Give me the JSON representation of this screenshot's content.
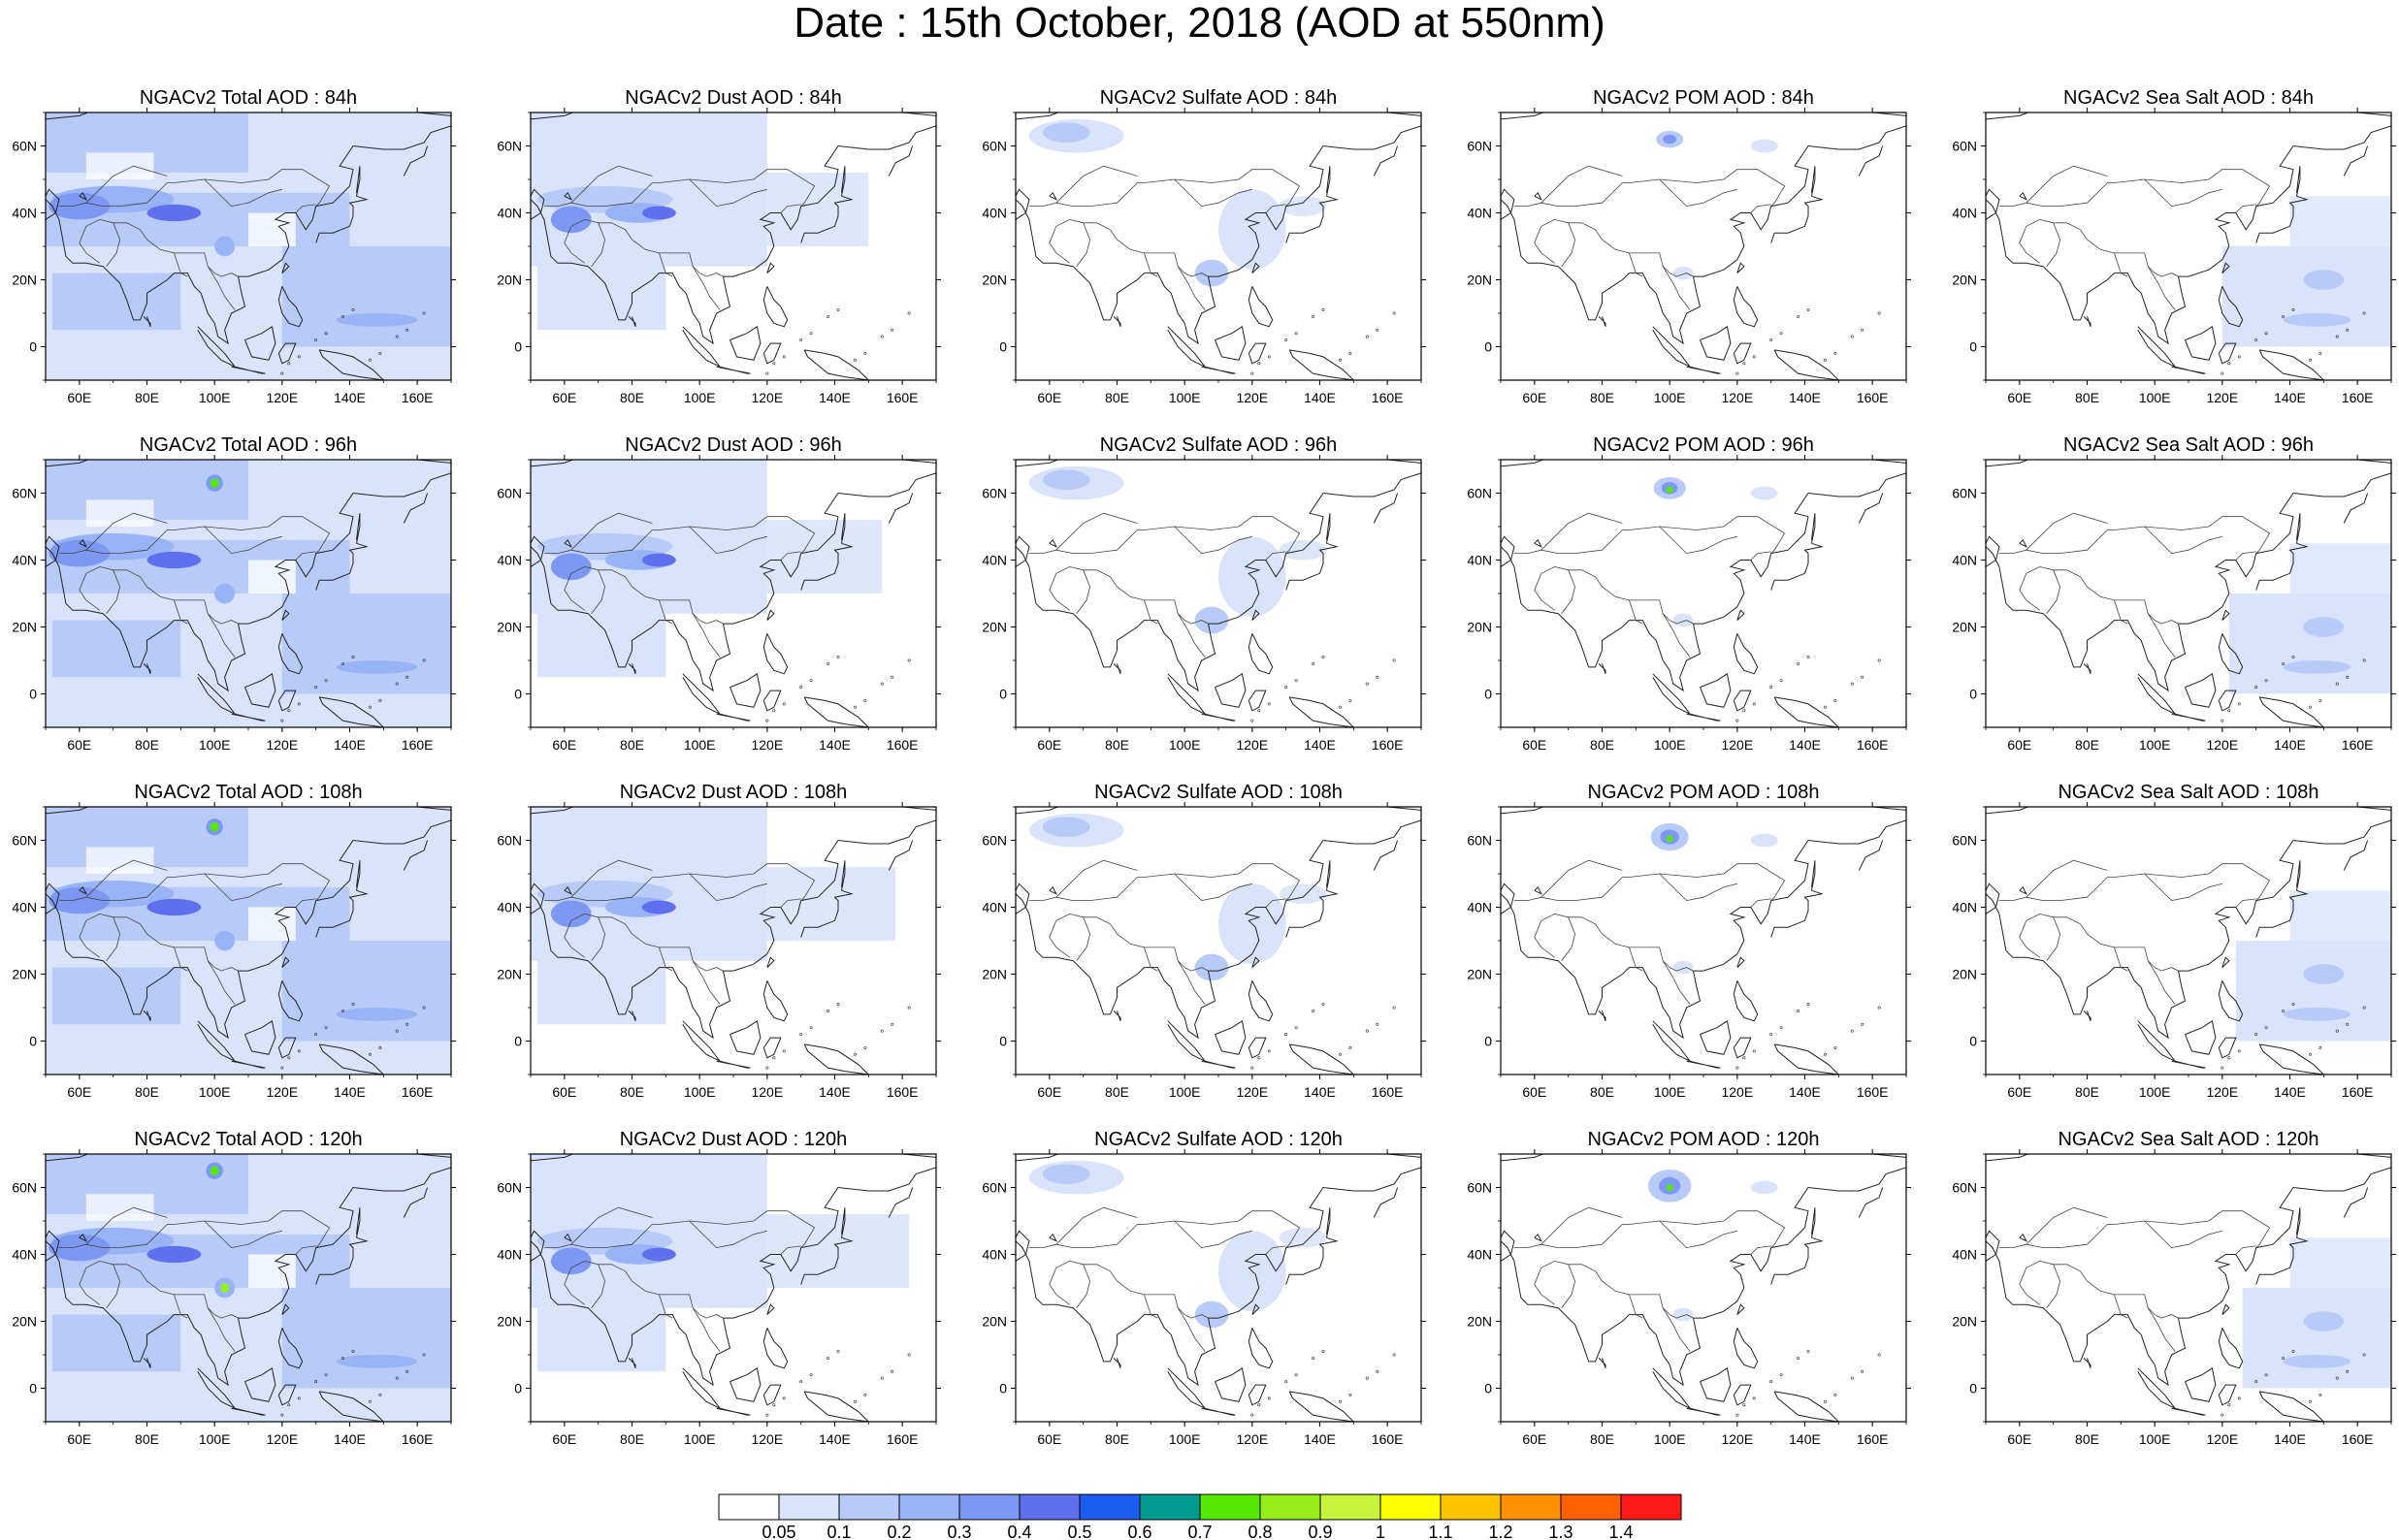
{
  "title": "Date : 15th October, 2018 (AOD at 550nm)",
  "map": {
    "x_ticks": [
      "60E",
      "80E",
      "100E",
      "120E",
      "140E",
      "160E"
    ],
    "y_ticks": [
      "60N",
      "40N",
      "20N",
      "0"
    ],
    "lon_range": [
      50,
      170
    ],
    "lat_range": [
      -10,
      70
    ]
  },
  "panels": [
    {
      "title": "NGACv2 Total AOD : 84h",
      "species": "total",
      "hour": 84
    },
    {
      "title": "NGACv2 Dust AOD : 84h",
      "species": "dust",
      "hour": 84
    },
    {
      "title": "NGACv2 Sulfate AOD : 84h",
      "species": "sulfate",
      "hour": 84
    },
    {
      "title": "NGACv2 POM AOD : 84h",
      "species": "pom",
      "hour": 84
    },
    {
      "title": "NGACv2 Sea Salt AOD : 84h",
      "species": "seasalt",
      "hour": 84
    },
    {
      "title": "NGACv2 Total AOD : 96h",
      "species": "total",
      "hour": 96
    },
    {
      "title": "NGACv2 Dust AOD : 96h",
      "species": "dust",
      "hour": 96
    },
    {
      "title": "NGACv2 Sulfate AOD : 96h",
      "species": "sulfate",
      "hour": 96
    },
    {
      "title": "NGACv2 POM AOD : 96h",
      "species": "pom",
      "hour": 96
    },
    {
      "title": "NGACv2 Sea Salt AOD : 96h",
      "species": "seasalt",
      "hour": 96
    },
    {
      "title": "NGACv2 Total AOD : 108h",
      "species": "total",
      "hour": 108
    },
    {
      "title": "NGACv2 Dust AOD : 108h",
      "species": "dust",
      "hour": 108
    },
    {
      "title": "NGACv2 Sulfate AOD : 108h",
      "species": "sulfate",
      "hour": 108
    },
    {
      "title": "NGACv2 POM AOD : 108h",
      "species": "pom",
      "hour": 108
    },
    {
      "title": "NGACv2 Sea Salt AOD : 108h",
      "species": "seasalt",
      "hour": 108
    },
    {
      "title": "NGACv2 Total AOD : 120h",
      "species": "total",
      "hour": 120
    },
    {
      "title": "NGACv2 Dust AOD : 120h",
      "species": "dust",
      "hour": 120
    },
    {
      "title": "NGACv2 Sulfate AOD : 120h",
      "species": "sulfate",
      "hour": 120
    },
    {
      "title": "NGACv2 POM AOD : 120h",
      "species": "pom",
      "hour": 120
    },
    {
      "title": "NGACv2 Sea Salt  AOD : 120h",
      "species": "seasalt",
      "hour": 120
    }
  ],
  "colorbar": {
    "labels": [
      "0.05",
      "0.1",
      "0.2",
      "0.3",
      "0.4",
      "0.5",
      "0.6",
      "0.7",
      "0.8",
      "0.9",
      "1",
      "1.1",
      "1.2",
      "1.3",
      "1.4"
    ],
    "colors": [
      "#ffffff",
      "#d9e3fb",
      "#b8cbf8",
      "#99b4f6",
      "#7d98f3",
      "#5f6fee",
      "#1b5df0",
      "#009a8e",
      "#55e800",
      "#96ee1a",
      "#c9f23c",
      "#ffff00",
      "#ffc300",
      "#ff9000",
      "#ff6100",
      "#ff1a1a"
    ]
  }
}
